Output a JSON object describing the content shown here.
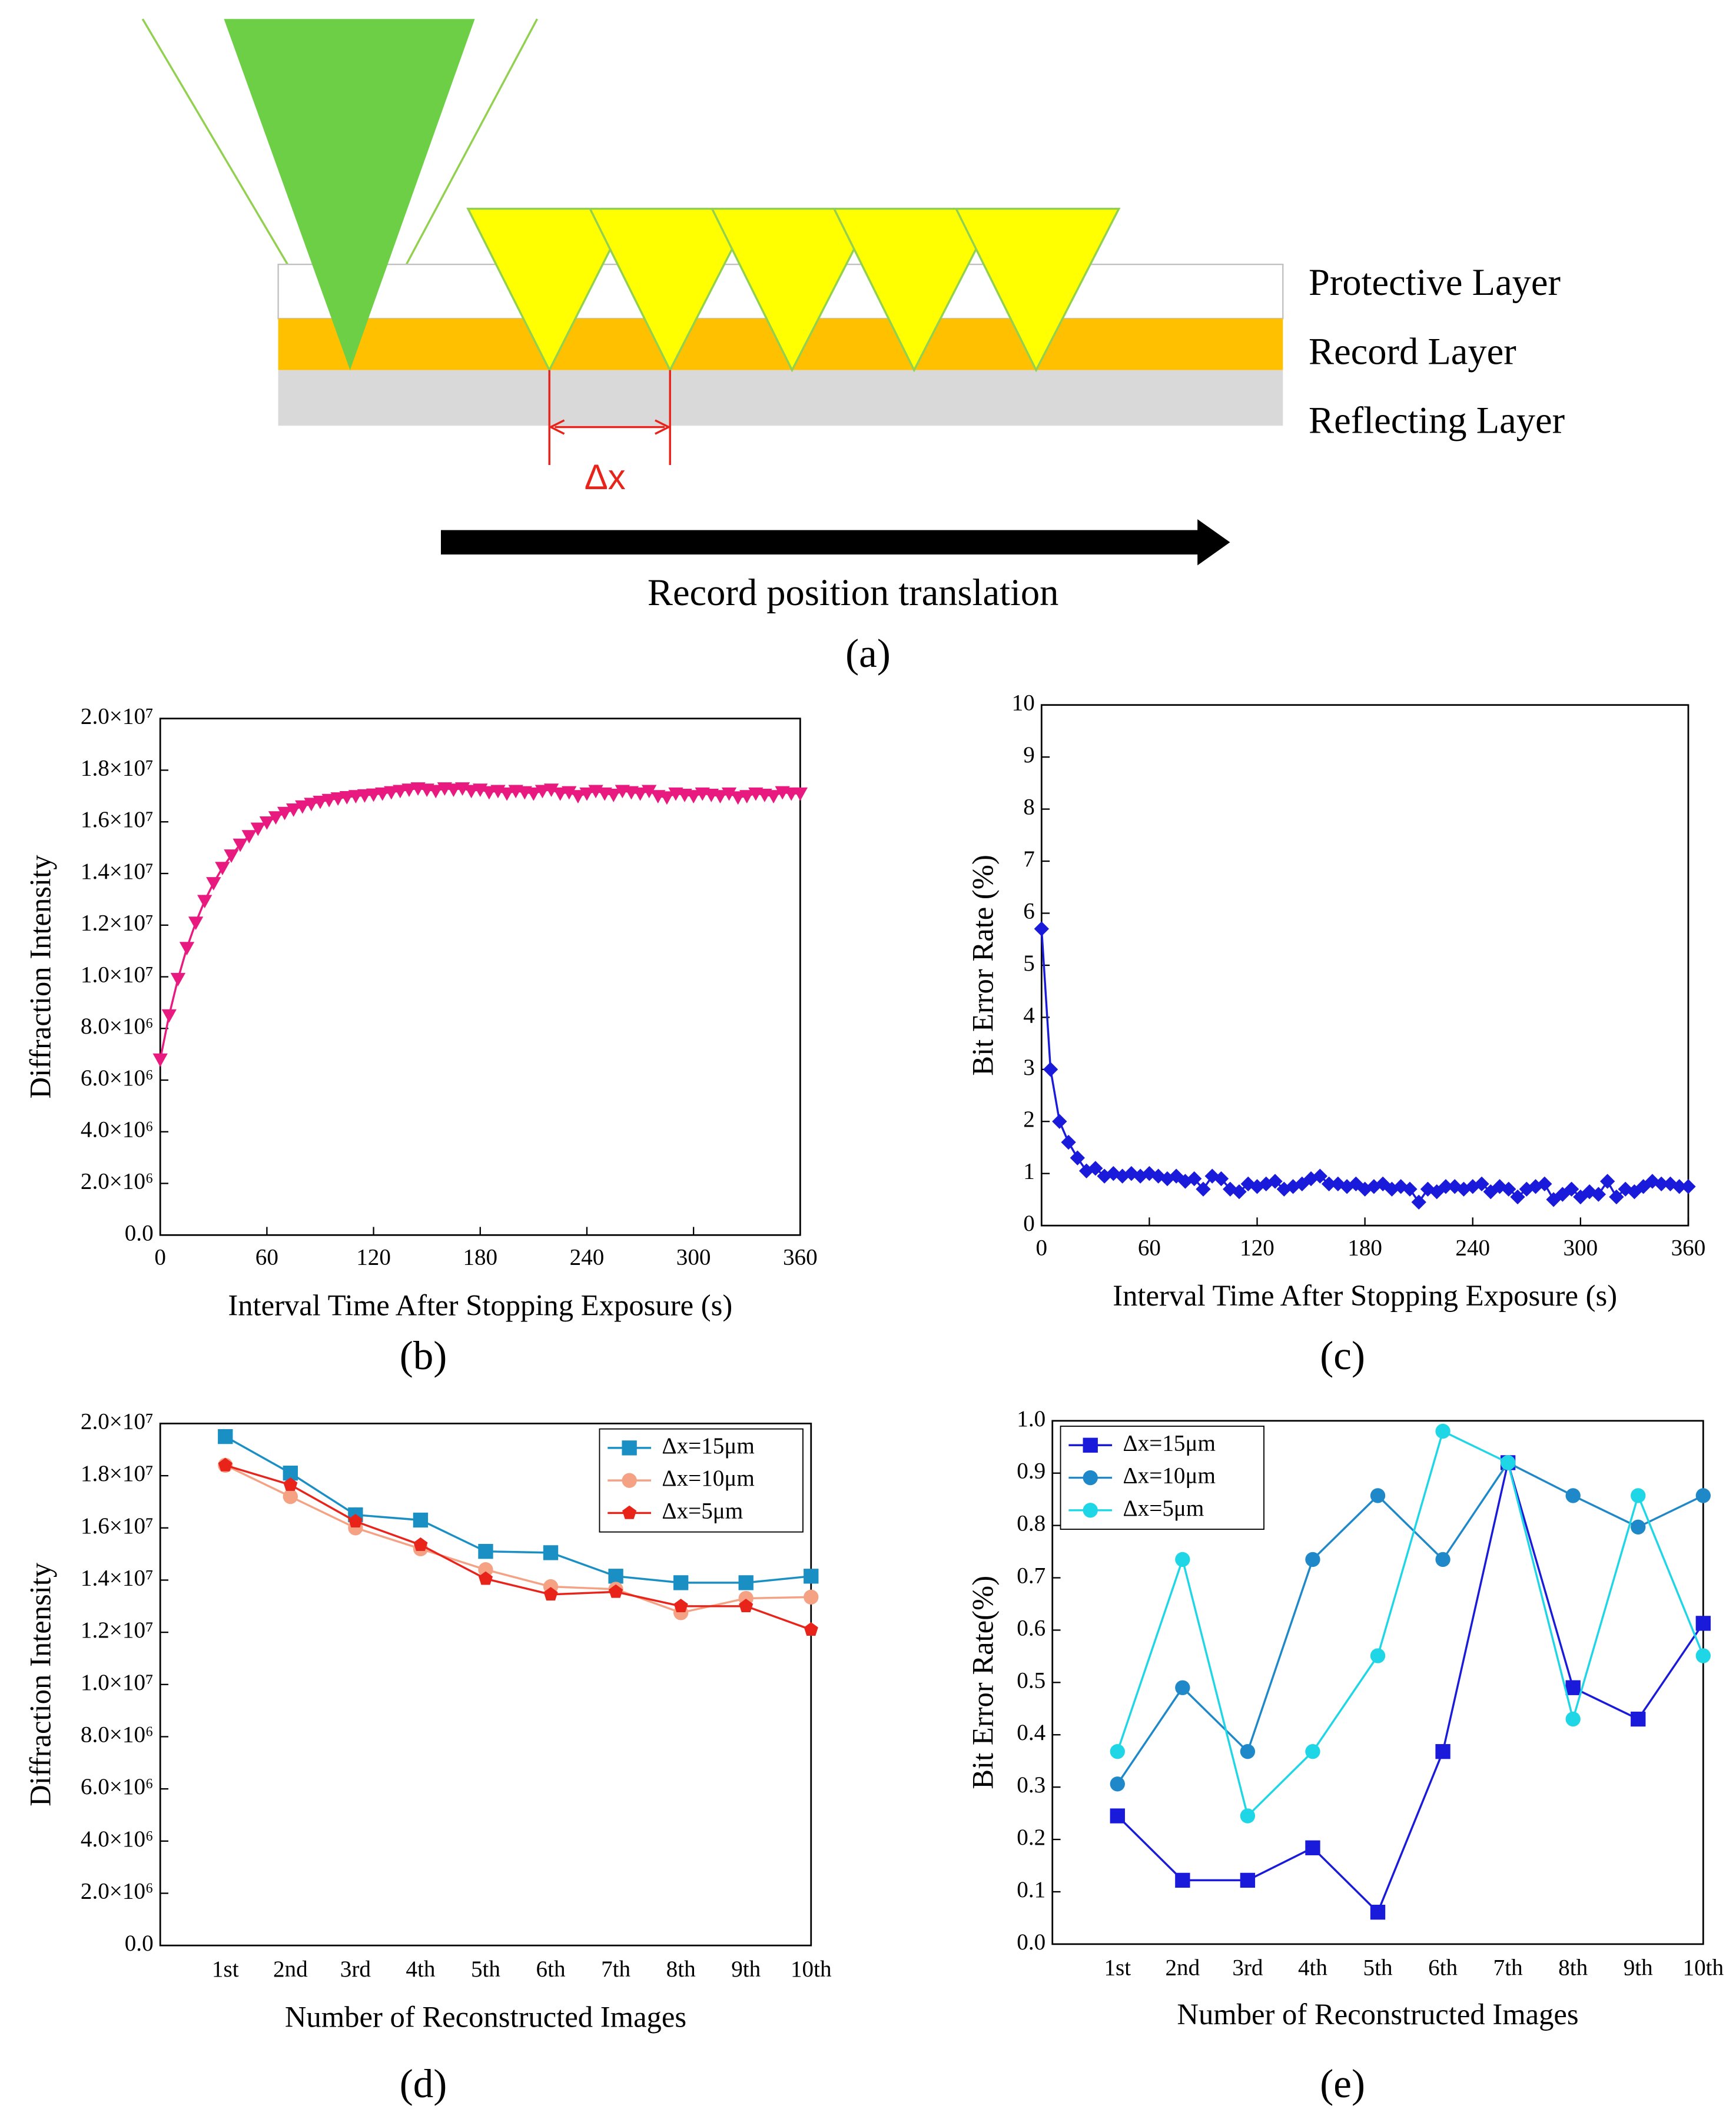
{
  "diagram": {
    "layers": [
      "Protective Layer",
      "Record Layer",
      "Reflecting Layer"
    ],
    "delta": "Δx",
    "arrow_label": "Record position translation",
    "label": "(a)"
  },
  "chart_data": [
    {
      "type": "line",
      "label": "(b)",
      "xlabel": "Interval Time After Stopping Exposure (s)",
      "ylabel": "Diffraction Intensity",
      "x": [
        0,
        5,
        10,
        15,
        20,
        25,
        30,
        35,
        40,
        45,
        50,
        55,
        60,
        65,
        70,
        75,
        80,
        85,
        90,
        95,
        100,
        105,
        110,
        115,
        120,
        125,
        130,
        135,
        140,
        145,
        150,
        155,
        160,
        165,
        170,
        175,
        180,
        185,
        190,
        195,
        200,
        205,
        210,
        215,
        220,
        225,
        230,
        235,
        240,
        245,
        250,
        255,
        260,
        265,
        270,
        275,
        280,
        285,
        290,
        295,
        300,
        305,
        310,
        315,
        320,
        325,
        330,
        335,
        340,
        345,
        350,
        355,
        360
      ],
      "series": [
        {
          "color": "#e8197f",
          "marker": "triangle-down",
          "values": [
            6800000,
            8510000,
            9920000,
            11120000,
            12100000,
            12940000,
            13630000,
            14220000,
            14700000,
            15120000,
            15450000,
            15740000,
            15980000,
            16180000,
            16350000,
            16480000,
            16600000,
            16700000,
            16780000,
            16850000,
            16910000,
            16960000,
            17000000,
            17030000,
            17060000,
            17100000,
            17150000,
            17200000,
            17250000,
            17300000,
            17250000,
            17200000,
            17300000,
            17250000,
            17300000,
            17200000,
            17250000,
            17150000,
            17200000,
            17100000,
            17200000,
            17150000,
            17100000,
            17200000,
            17250000,
            17100000,
            17150000,
            17000000,
            17100000,
            17200000,
            17100000,
            17050000,
            17200000,
            17150000,
            17100000,
            17200000,
            17000000,
            16950000,
            17100000,
            17050000,
            17000000,
            17100000,
            17050000,
            17000000,
            17100000,
            16950000,
            17000000,
            17100000,
            17050000,
            17000000,
            17150000,
            17100000,
            17100000
          ]
        }
      ],
      "xlim": [
        0,
        360
      ],
      "xticks": [
        0,
        60,
        120,
        180,
        240,
        300,
        360
      ],
      "ylim": [
        0,
        20000000
      ],
      "yticks": [
        {
          "value": 0,
          "label": "0.0"
        },
        {
          "value": 2000000,
          "label": "2.0×10⁶"
        },
        {
          "value": 4000000,
          "label": "4.0×10⁶"
        },
        {
          "value": 6000000,
          "label": "6.0×10⁶"
        },
        {
          "value": 8000000,
          "label": "8.0×10⁶"
        },
        {
          "value": 10000000,
          "label": "1.0×10⁷"
        },
        {
          "value": 12000000,
          "label": "1.2×10⁷"
        },
        {
          "value": 14000000,
          "label": "1.4×10⁷"
        },
        {
          "value": 16000000,
          "label": "1.6×10⁷"
        },
        {
          "value": 18000000,
          "label": "1.8×10⁷"
        },
        {
          "value": 20000000,
          "label": "2.0×10⁷"
        }
      ]
    },
    {
      "type": "line",
      "label": "(c)",
      "xlabel": "Interval Time After Stopping Exposure (s)",
      "ylabel": "Bit Error Rate (%)",
      "x": [
        0,
        5,
        10,
        15,
        20,
        25,
        30,
        35,
        40,
        45,
        50,
        55,
        60,
        65,
        70,
        75,
        80,
        85,
        90,
        95,
        100,
        105,
        110,
        115,
        120,
        125,
        130,
        135,
        140,
        145,
        150,
        155,
        160,
        165,
        170,
        175,
        180,
        185,
        190,
        195,
        200,
        205,
        210,
        215,
        220,
        225,
        230,
        235,
        240,
        245,
        250,
        255,
        260,
        265,
        270,
        275,
        280,
        285,
        290,
        295,
        300,
        305,
        310,
        315,
        320,
        325,
        330,
        335,
        340,
        345,
        350,
        355,
        360
      ],
      "series": [
        {
          "color": "#1a1adb",
          "marker": "diamond",
          "values": [
            5.7,
            3.0,
            2.0,
            1.6,
            1.3,
            1.05,
            1.1,
            0.95,
            1.0,
            0.95,
            1.0,
            0.95,
            1.0,
            0.95,
            0.9,
            0.95,
            0.85,
            0.9,
            0.7,
            0.95,
            0.9,
            0.7,
            0.65,
            0.8,
            0.75,
            0.8,
            0.85,
            0.7,
            0.75,
            0.8,
            0.9,
            0.95,
            0.8,
            0.8,
            0.75,
            0.8,
            0.7,
            0.75,
            0.8,
            0.7,
            0.75,
            0.7,
            0.45,
            0.7,
            0.65,
            0.75,
            0.75,
            0.7,
            0.75,
            0.8,
            0.65,
            0.75,
            0.7,
            0.55,
            0.7,
            0.75,
            0.8,
            0.5,
            0.6,
            0.7,
            0.55,
            0.65,
            0.6,
            0.85,
            0.55,
            0.7,
            0.65,
            0.75,
            0.85,
            0.8,
            0.8,
            0.75,
            0.75
          ]
        }
      ],
      "xlim": [
        0,
        360
      ],
      "xticks": [
        0,
        60,
        120,
        180,
        240,
        300,
        360
      ],
      "ylim": [
        0,
        10
      ],
      "yticks": [
        0,
        1,
        2,
        3,
        4,
        5,
        6,
        7,
        8,
        9,
        10
      ]
    },
    {
      "type": "line",
      "label": "(d)",
      "xlabel": "Number of Reconstructed Images",
      "ylabel": "Diffraction Intensity",
      "categories": [
        "1st",
        "2nd",
        "3rd",
        "4th",
        "5th",
        "6th",
        "7th",
        "8th",
        "9th",
        "10th"
      ],
      "series": [
        {
          "name": "Δx=15μm",
          "color": "#1a8fc4",
          "marker": "square",
          "values": [
            19500000,
            18100000,
            16500000,
            16300000,
            15100000,
            15050000,
            14150000,
            13900000,
            13900000,
            14150000
          ]
        },
        {
          "name": "Δx=10μm",
          "color": "#f5a184",
          "marker": "circle",
          "values": [
            18400000,
            17200000,
            16000000,
            15200000,
            14400000,
            13750000,
            13650000,
            12750000,
            13300000,
            13350000
          ]
        },
        {
          "name": "Δx=5μm",
          "color": "#e8231a",
          "marker": "pentagon",
          "values": [
            18400000,
            17650000,
            16250000,
            15350000,
            14050000,
            13450000,
            13550000,
            13000000,
            13000000,
            12100000
          ]
        }
      ],
      "ylim": [
        0,
        20000000
      ],
      "yticks": [
        {
          "value": 0,
          "label": "0.0"
        },
        {
          "value": 2000000,
          "label": "2.0×10⁶"
        },
        {
          "value": 4000000,
          "label": "4.0×10⁶"
        },
        {
          "value": 6000000,
          "label": "6.0×10⁶"
        },
        {
          "value": 8000000,
          "label": "8.0×10⁶"
        },
        {
          "value": 10000000,
          "label": "1.0×10⁷"
        },
        {
          "value": 12000000,
          "label": "1.2×10⁷"
        },
        {
          "value": 14000000,
          "label": "1.4×10⁷"
        },
        {
          "value": 16000000,
          "label": "1.6×10⁷"
        },
        {
          "value": 18000000,
          "label": "1.8×10⁷"
        },
        {
          "value": 20000000,
          "label": "2.0×10⁷"
        }
      ],
      "legend": "upper right"
    },
    {
      "type": "line",
      "label": "(e)",
      "xlabel": "Number of Reconstructed Images",
      "ylabel": "Bit Error Rate(%)",
      "categories": [
        "1st",
        "2nd",
        "3rd",
        "4th",
        "5th",
        "6th",
        "7th",
        "8th",
        "9th",
        "10th"
      ],
      "series": [
        {
          "name": "Δx=15μm",
          "color": "#1a1adb",
          "marker": "square",
          "values": [
            0.245,
            0.122,
            0.122,
            0.184,
            0.061,
            0.368,
            0.92,
            0.49,
            0.43,
            0.613
          ]
        },
        {
          "name": "Δx=10μm",
          "color": "#1e88c8",
          "marker": "circle",
          "values": [
            0.306,
            0.49,
            0.368,
            0.735,
            0.857,
            0.735,
            0.92,
            0.857,
            0.797,
            0.857
          ]
        },
        {
          "name": "Δx=5μm",
          "color": "#1fd6e6",
          "marker": "circle",
          "values": [
            0.368,
            0.735,
            0.245,
            0.368,
            0.551,
            0.98,
            0.92,
            0.43,
            0.857,
            0.551
          ]
        }
      ],
      "ylim": [
        0,
        1
      ],
      "yticks": [
        {
          "value": 0,
          "label": "0.0"
        },
        0.1,
        0.2,
        0.3,
        0.4,
        0.5,
        0.6,
        0.7,
        0.8,
        0.9,
        {
          "value": 1,
          "label": "1.0"
        }
      ],
      "legend": "upper left"
    }
  ]
}
